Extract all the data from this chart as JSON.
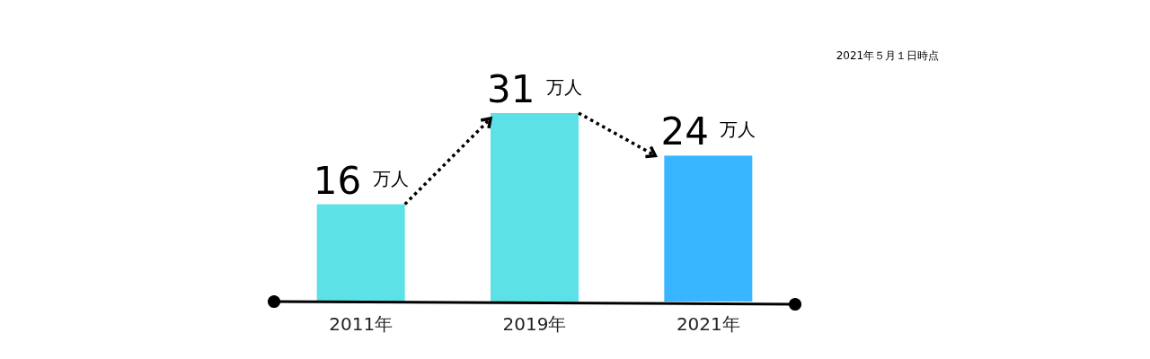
{
  "chart_data": {
    "type": "bar",
    "categories": [
      "2011年",
      "2019年",
      "2021年"
    ],
    "values": [
      16,
      31,
      24
    ],
    "colors": [
      "#5ce1e6",
      "#5ce1e6",
      "#38b6ff"
    ],
    "value_labels": [
      "16 万人",
      "31 万人",
      "24 万人"
    ],
    "annotations": [
      "2021年５月１日時点"
    ]
  }
}
